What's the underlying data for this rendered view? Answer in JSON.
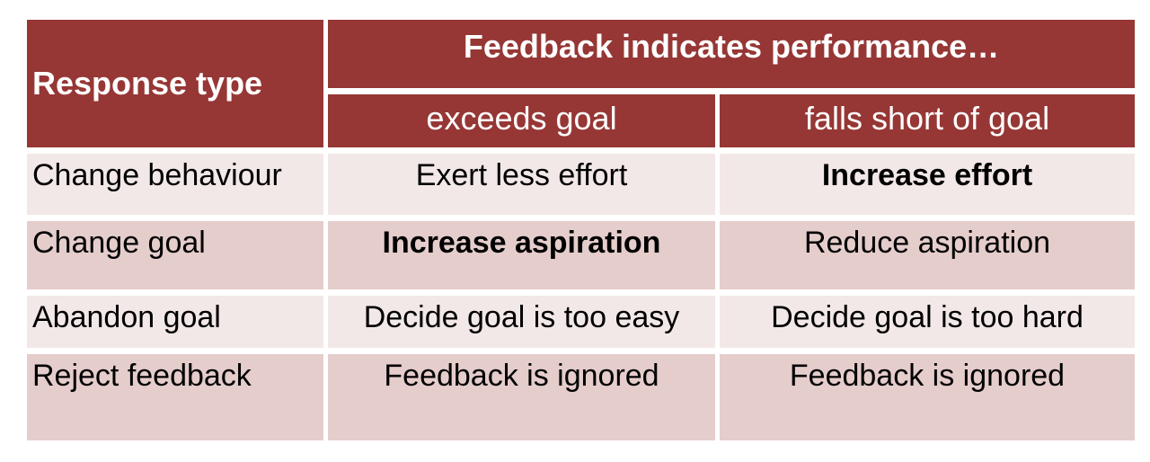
{
  "colors": {
    "header_bg": "#963735",
    "header_text": "#FFFFFF",
    "row_light_bg": "#F2E8E7",
    "row_dark_bg": "#E5CDCC",
    "body_text": "#000000",
    "cell_border": "#FFFFFF"
  },
  "table": {
    "corner_header": "Response type",
    "group_header": "Feedback indicates performance…",
    "column_headers": {
      "exceeds": "exceeds goal",
      "falls_short": "falls short of goal"
    },
    "rows": [
      {
        "response_type": "Change behaviour",
        "exceeds": {
          "text": "Exert less effort",
          "bold": false
        },
        "falls_short": {
          "text": "Increase effort",
          "bold": true
        }
      },
      {
        "response_type": "Change goal",
        "exceeds": {
          "text": "Increase aspiration",
          "bold": true
        },
        "falls_short": {
          "text": "Reduce aspiration",
          "bold": false
        }
      },
      {
        "response_type": "Abandon goal",
        "exceeds": {
          "text": "Decide goal is too easy",
          "bold": false
        },
        "falls_short": {
          "text": "Decide goal is too hard",
          "bold": false
        }
      },
      {
        "response_type": "Reject feedback",
        "exceeds": {
          "text": "Feedback is ignored",
          "bold": false
        },
        "falls_short": {
          "text": "Feedback is ignored",
          "bold": false
        }
      }
    ]
  }
}
